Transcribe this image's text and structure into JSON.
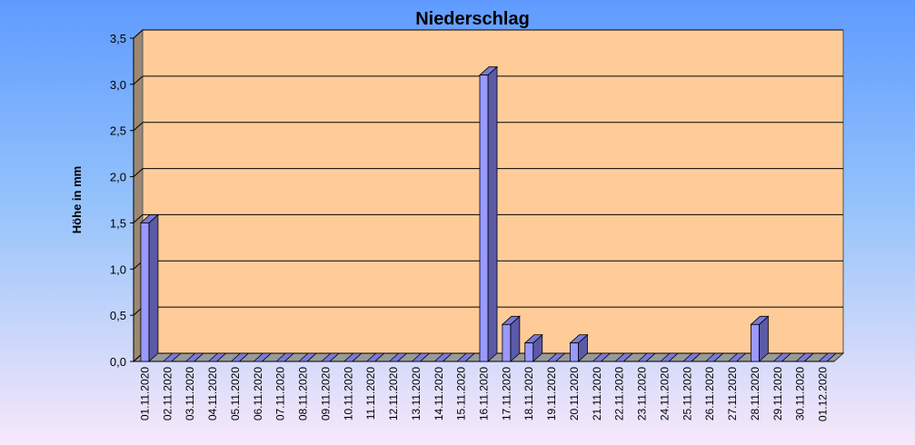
{
  "chart_data": {
    "type": "bar",
    "title": "Niederschlag",
    "y_label": "Höhe in mm",
    "categories": [
      "01.11.2020",
      "02.11.2020",
      "03.11.2020",
      "04.11.2020",
      "05.11.2020",
      "06.11.2020",
      "07.11.2020",
      "08.11.2020",
      "09.11.2020",
      "10.11.2020",
      "11.11.2020",
      "12.11.2020",
      "13.11.2020",
      "14.11.2020",
      "15.11.2020",
      "16.11.2020",
      "17.11.2020",
      "18.11.2020",
      "19.11.2020",
      "20.11.2020",
      "21.11.2020",
      "22.11.2020",
      "23.11.2020",
      "24.11.2020",
      "25.11.2020",
      "26.11.2020",
      "27.11.2020",
      "28.11.2020",
      "29.11.2020",
      "30.11.2020",
      "01.12.2020"
    ],
    "values": [
      1.5,
      0,
      0,
      0,
      0,
      0,
      0,
      0,
      0,
      0,
      0,
      0,
      0,
      0,
      0,
      3.1,
      0.4,
      0.2,
      0,
      0.2,
      0,
      0,
      0,
      0,
      0,
      0,
      0,
      0.4,
      0,
      0,
      0
    ],
    "color": "#9999ff",
    "ylim": [
      0,
      3.5
    ],
    "yticks": [
      {
        "value": 0,
        "label": "0,0"
      },
      {
        "value": 0.5,
        "label": "0,5"
      },
      {
        "value": 1,
        "label": "1,0"
      },
      {
        "value": 1.5,
        "label": "1,5"
      },
      {
        "value": 2,
        "label": "2,0"
      },
      {
        "value": 2.5,
        "label": "2,5"
      },
      {
        "value": 3,
        "label": "3,0"
      },
      {
        "value": 3.5,
        "label": "3,5"
      }
    ],
    "grid": true
  }
}
